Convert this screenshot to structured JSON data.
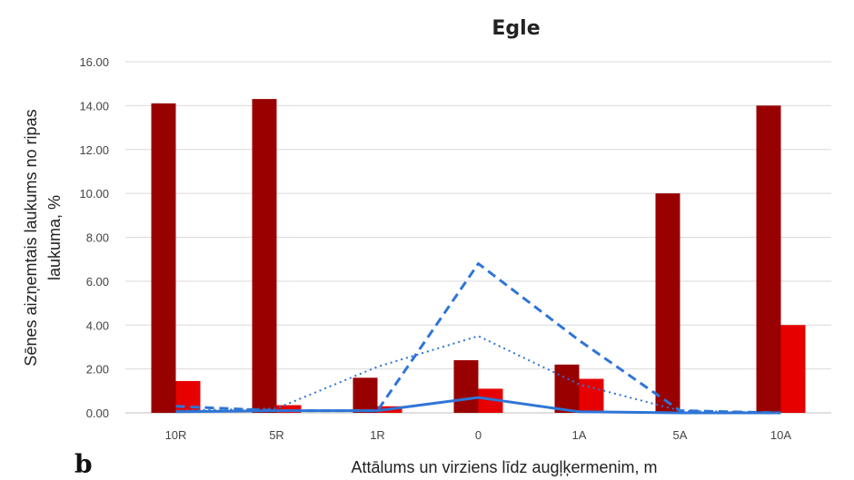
{
  "chart_data": {
    "type": "bar",
    "title": "Egle",
    "panel_label": "b",
    "xlabel": "Attālums un virziens līdz augļķermenim, m",
    "ylabel_lines": [
      "Sēnes aizņemtais laukums no ripas",
      "laukuma, %"
    ],
    "categories": [
      "10R",
      "5R",
      "1R",
      "0",
      "1A",
      "5A",
      "10A"
    ],
    "yticks": [
      "0.00",
      "2.00",
      "4.00",
      "6.00",
      "8.00",
      "10.00",
      "12.00",
      "14.00",
      "16.00"
    ],
    "ylim": [
      0,
      16
    ],
    "grid": true,
    "bar_series": [
      {
        "color": "#990000",
        "values": [
          14.1,
          14.3,
          1.6,
          2.4,
          2.2,
          10.0,
          14.0
        ]
      },
      {
        "color": "#e60000",
        "values": [
          1.45,
          0.35,
          0.3,
          1.1,
          1.55,
          0.0,
          4.0
        ]
      }
    ],
    "line_series": [
      {
        "color": "#2e75d6",
        "style": "solid",
        "values": [
          0.05,
          0.1,
          0.1,
          0.7,
          0.05,
          0.0,
          0.0
        ]
      },
      {
        "color": "#2e75d6",
        "style": "dashed",
        "values": [
          0.3,
          0.1,
          0.1,
          6.8,
          3.3,
          0.1,
          0.0
        ]
      },
      {
        "color": "#2e75d6",
        "style": "dotted",
        "values": [
          0.1,
          0.2,
          2.1,
          3.5,
          1.3,
          0.1,
          0.0
        ]
      }
    ]
  }
}
